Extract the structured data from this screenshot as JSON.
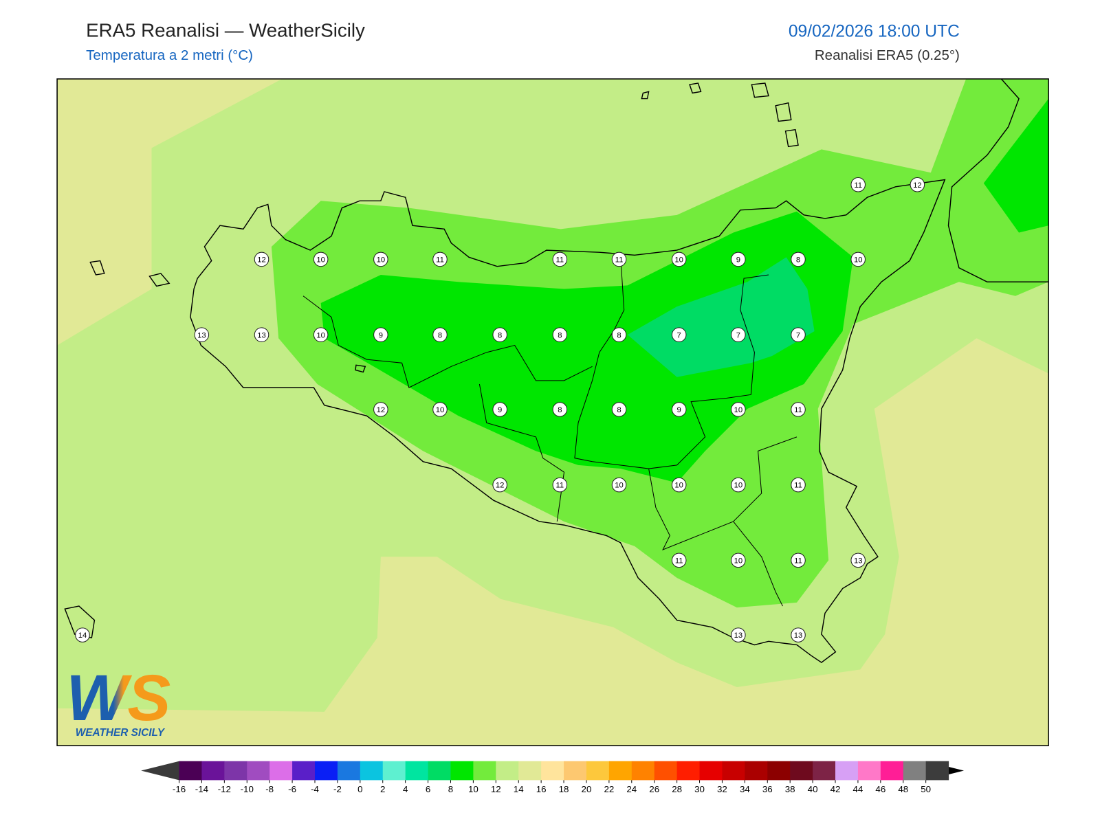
{
  "header": {
    "title": "ERA5 Reanalisi — WeatherSicily",
    "subtitle": "Temperatura a 2 metri (°C)",
    "datetime": "09/02/2026 18:00 UTC",
    "source": "Reanalisi ERA5 (0.25°)"
  },
  "map": {
    "values": [
      11,
      12,
      12,
      10,
      10,
      11,
      11,
      11,
      10,
      9,
      8,
      10,
      13,
      13,
      10,
      9,
      8,
      8,
      8,
      8,
      7,
      7,
      7,
      12,
      10,
      9,
      8,
      8,
      9,
      10,
      11,
      12,
      11,
      10,
      10,
      10,
      11,
      11,
      10,
      11,
      13,
      14,
      13,
      13
    ]
  },
  "colorbar": {
    "ticks": [
      -16,
      -14,
      -12,
      -10,
      -8,
      -6,
      -4,
      -2,
      0,
      2,
      4,
      6,
      8,
      10,
      12,
      14,
      16,
      18,
      20,
      22,
      24,
      26,
      28,
      30,
      32,
      34,
      36,
      38,
      40,
      42,
      44,
      46,
      48,
      50
    ],
    "colors": [
      "#4b0055",
      "#6a1399",
      "#7d35a8",
      "#a04cc0",
      "#dc6ee8",
      "#5a1fc8",
      "#0a1ff5",
      "#1a78e0",
      "#0bc4e0",
      "#5ef0d0",
      "#00e5a0",
      "#00dc64",
      "#00e600",
      "#73eb3c",
      "#c3ed87",
      "#e1e996",
      "#ffe49c",
      "#fdc870",
      "#fdc83c",
      "#ffa500",
      "#ff8200",
      "#ff5000",
      "#ff1e00",
      "#e60000",
      "#c80000",
      "#aa0000",
      "#8c0000",
      "#6e0a1e",
      "#7d2346",
      "#d7a0f5",
      "#ff78c8",
      "#ff1e96",
      "#808080",
      "#3c3c3c"
    ],
    "under_color": "#3a3a3a",
    "over_color": "#000000"
  },
  "logo": {
    "mark": "WS",
    "text": "WEATHER SICILY"
  }
}
